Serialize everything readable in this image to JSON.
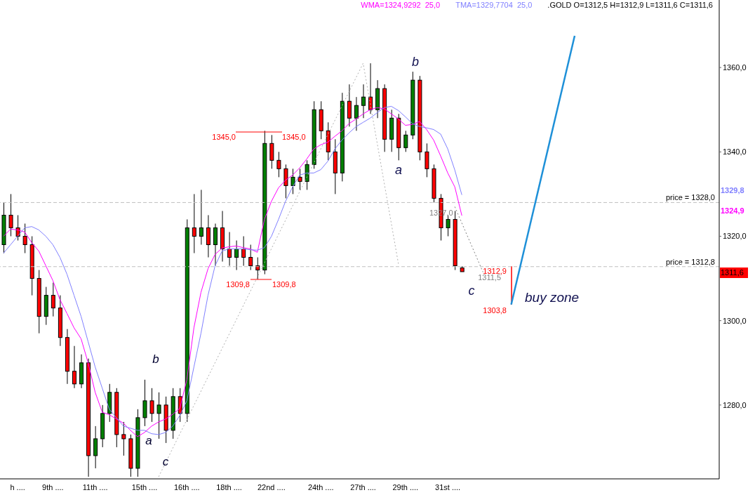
{
  "chart_data": {
    "type": "candlestick",
    "title": ".GOLD O=1312,5 H=1312,9 L=1311,6 C=1311,6",
    "categories": [
      null,
      null,
      "h ....",
      null,
      null,
      null,
      null,
      "9th ....",
      null,
      null,
      null,
      null,
      null,
      "11th ....",
      null,
      null,
      null,
      null,
      null,
      null,
      "15th ....",
      null,
      null,
      null,
      null,
      null,
      "16th ....",
      null,
      null,
      null,
      null,
      null,
      "18th ....",
      null,
      null,
      null,
      null,
      null,
      "22nd ....",
      null,
      null,
      null,
      null,
      null,
      null,
      "24th ....",
      null,
      null,
      null,
      null,
      null,
      "27th ....",
      null,
      null,
      null,
      null,
      null,
      "29th ....",
      null,
      null,
      null,
      null,
      null,
      "31st ....",
      null,
      null,
      null,
      null,
      null,
      null,
      null,
      null,
      null,
      null,
      null,
      null,
      null,
      null,
      null,
      null,
      null,
      null,
      null,
      null,
      null,
      null,
      null,
      null,
      null,
      null,
      null,
      null,
      null,
      null,
      null,
      null,
      null,
      null,
      null,
      null,
      null,
      null
    ],
    "ohlc": [
      [
        1318,
        1328,
        1316,
        1325
      ],
      [
        1325,
        1330,
        1320,
        1322
      ],
      [
        1322,
        1325,
        1319,
        1320
      ],
      [
        1320,
        1323,
        1316,
        1318
      ],
      [
        1318,
        1320,
        1306,
        1310
      ],
      [
        1310,
        1312,
        1297,
        1301
      ],
      [
        1301,
        1308,
        1299,
        1306
      ],
      [
        1306,
        1309,
        1301,
        1303
      ],
      [
        1303,
        1306,
        1294,
        1296
      ],
      [
        1296,
        1298,
        1285,
        1288
      ],
      [
        1288,
        1294,
        1284,
        1285
      ],
      [
        1285,
        1292,
        1284,
        1290
      ],
      [
        1290,
        1291,
        1263,
        1268
      ],
      [
        1268,
        1275,
        1265,
        1272
      ],
      [
        1272,
        1280,
        1270,
        1278
      ],
      [
        1278,
        1285,
        1276,
        1283
      ],
      [
        1283,
        1284,
        1270,
        1273
      ],
      [
        1273,
        1276,
        1268,
        1272
      ],
      [
        1272,
        1273,
        1263,
        1265
      ],
      [
        1265,
        1279,
        1263,
        1277
      ],
      [
        1277,
        1286,
        1275,
        1281
      ],
      [
        1281,
        1284,
        1276,
        1278
      ],
      [
        1278,
        1283,
        1272,
        1280
      ],
      [
        1280,
        1282,
        1271,
        1274
      ],
      [
        1274,
        1284,
        1272,
        1282
      ],
      [
        1282,
        1284,
        1276,
        1278
      ],
      [
        1278,
        1324,
        1276,
        1322
      ],
      [
        1322,
        1330,
        1316,
        1320
      ],
      [
        1320,
        1331,
        1318,
        1322
      ],
      [
        1322,
        1325,
        1315,
        1318
      ],
      [
        1318,
        1323,
        1313,
        1322
      ],
      [
        1322,
        1326,
        1314,
        1317
      ],
      [
        1317,
        1321,
        1313,
        1315
      ],
      [
        1315,
        1319,
        1312,
        1317
      ],
      [
        1317,
        1320,
        1313,
        1315
      ],
      [
        1315,
        1318,
        1312,
        1313
      ],
      [
        1313,
        1315,
        1309.8,
        1312
      ],
      [
        1312,
        1345,
        1311,
        1342
      ],
      [
        1342,
        1344,
        1336,
        1338
      ],
      [
        1338,
        1340,
        1334,
        1336
      ],
      [
        1336,
        1337,
        1329,
        1332
      ],
      [
        1332,
        1336,
        1330,
        1334
      ],
      [
        1334,
        1336,
        1331,
        1333
      ],
      [
        1333,
        1338,
        1331,
        1337
      ],
      [
        1337,
        1352,
        1336,
        1350
      ],
      [
        1350,
        1352,
        1343,
        1345
      ],
      [
        1345,
        1347,
        1338,
        1340
      ],
      [
        1340,
        1343,
        1330,
        1335
      ],
      [
        1335,
        1354,
        1333,
        1352
      ],
      [
        1352,
        1356,
        1346,
        1348
      ],
      [
        1348,
        1353,
        1345,
        1351
      ],
      [
        1351,
        1356,
        1348,
        1353
      ],
      [
        1353,
        1361,
        1349,
        1350
      ],
      [
        1350,
        1357,
        1348,
        1355
      ],
      [
        1355,
        1356,
        1340,
        1343
      ],
      [
        1343,
        1350,
        1340,
        1348
      ],
      [
        1348,
        1349,
        1338,
        1341
      ],
      [
        1341,
        1345,
        1340,
        1344
      ],
      [
        1344,
        1359,
        1343,
        1357
      ],
      [
        1357,
        1358,
        1338,
        1340
      ],
      [
        1340,
        1342,
        1334,
        1336
      ],
      [
        1336,
        1337,
        1328,
        1329
      ],
      [
        1329,
        1330,
        1319,
        1322
      ],
      [
        1322,
        1325,
        1320,
        1324
      ],
      [
        1324,
        1326,
        1312,
        1313
      ],
      [
        1312.5,
        1312.9,
        1311.6,
        1311.6
      ],
      null,
      null,
      null,
      null,
      null,
      null,
      null,
      null,
      null,
      null,
      null,
      null,
      null,
      null,
      null,
      null,
      null,
      null,
      null,
      null,
      null,
      null,
      null,
      null,
      null,
      null,
      null,
      null,
      null,
      null,
      null,
      null,
      null,
      null,
      null,
      null
    ],
    "colors": [
      "#008000",
      "#ff0000",
      "#ff0000",
      "#ff0000",
      "#ff0000",
      "#ff0000",
      "#008000",
      "#ff0000",
      "#ff0000",
      "#ff0000",
      "#ff0000",
      "#008000",
      "#ff0000",
      "#008000",
      "#008000",
      "#008000",
      "#ff0000",
      "#ff0000",
      "#ff0000",
      "#008000",
      "#008000",
      "#ff0000",
      "#008000",
      "#ff0000",
      "#008000",
      "#ff0000",
      "#008000",
      "#ff0000",
      "#008000",
      "#ff0000",
      "#008000",
      "#ff0000",
      "#ff0000",
      "#008000",
      "#ff0000",
      "#ff0000",
      "#ff0000",
      "#008000",
      "#ff0000",
      "#ff0000",
      "#ff0000",
      "#008000",
      "#ff0000",
      "#008000",
      "#008000",
      "#ff0000",
      "#ff0000",
      "#ff0000",
      "#008000",
      "#ff0000",
      "#008000",
      "#008000",
      "#ff0000",
      "#008000",
      "#ff0000",
      "#008000",
      "#ff0000",
      "#008000",
      "#008000",
      "#ff0000",
      "#ff0000",
      "#ff0000",
      "#ff0000",
      "#008000",
      "#ff0000",
      "#ff0000",
      null,
      null,
      null,
      null,
      null,
      null,
      null,
      null,
      null,
      null,
      null,
      null,
      null,
      null,
      null,
      null,
      null,
      null,
      null,
      null,
      null,
      null,
      null,
      null,
      null,
      null,
      null,
      null,
      null,
      null,
      null,
      null,
      null,
      null,
      null,
      null
    ],
    "series": [
      {
        "name": "WMA=1324,9292  25,0",
        "type": "line",
        "color": "#ff00ff",
        "values": [
          1320,
          1321.7,
          1321.5,
          1321,
          1318.5,
          1316.5,
          1313,
          1309.5,
          1305,
          1301.7,
          1298.3,
          1295.7,
          1290,
          1283,
          1278.3,
          1277.7,
          1276.7,
          1275.7,
          1274,
          1272.5,
          1273.5,
          1275,
          1276,
          1276.7,
          1277.8,
          1279.2,
          1286,
          1298.3,
          1306.7,
          1312.3,
          1315.7,
          1317.2,
          1317.5,
          1317.7,
          1317.3,
          1317,
          1316.2,
          1324,
          1328.3,
          1331.5,
          1333.3,
          1334.5,
          1336.2,
          1338.3,
          1340.7,
          1341.7,
          1342.3,
          1343.7,
          1345,
          1346.7,
          1347.8,
          1349,
          1350,
          1350.5,
          1350.2,
          1349,
          1347.8,
          1346.3,
          1346.5,
          1347.2,
          1345.3,
          1342.8,
          1339,
          1335,
          1331.7,
          1324.9,
          null,
          null,
          null,
          null,
          null,
          null,
          null,
          null,
          null,
          null,
          null,
          null,
          null,
          null,
          null,
          null,
          null,
          null,
          null,
          null,
          null,
          null,
          null,
          null,
          null,
          null,
          null,
          null,
          null,
          null,
          null,
          null,
          null,
          null,
          null,
          null
        ]
      },
      {
        "name": "TMA=1329,7704  25,0",
        "type": "line",
        "color": "#8080ff",
        "values": [
          1316,
          1318,
          1320,
          1322,
          1322.3,
          1321.5,
          1320,
          1318,
          1315,
          1311,
          1306,
          1301,
          1295,
          1289,
          1284,
          1279,
          1277,
          1275,
          1274.5,
          1274,
          1274,
          1273.2,
          1273,
          1273.5,
          1275,
          1277.5,
          1281,
          1289,
          1297,
          1306,
          1313,
          1316.5,
          1317,
          1317,
          1317,
          1316.8,
          1316.7,
          1317.3,
          1320,
          1324,
          1328.3,
          1331.7,
          1334.5,
          1335,
          1335,
          1335.8,
          1337.8,
          1340.7,
          1342.8,
          1344.5,
          1346,
          1347,
          1348,
          1349.3,
          1350.5,
          1350.8,
          1349.8,
          1348.3,
          1346.7,
          1346,
          1345.7,
          1345.3,
          1344.2,
          1340.7,
          1335.7,
          1329.8,
          null,
          null,
          null,
          null,
          null,
          null,
          null,
          null,
          null,
          null,
          null,
          null,
          null,
          null,
          null,
          null,
          null,
          null,
          null,
          null,
          null,
          null,
          null,
          null,
          null,
          null,
          null,
          null,
          null,
          null,
          null,
          null,
          null,
          null,
          null,
          null
        ]
      },
      {
        "type": "line",
        "color": "#b0b0b0",
        "line_style": "dotted",
        "values": [
          null,
          null,
          null,
          null,
          null,
          null,
          null,
          null,
          null,
          null,
          null,
          null,
          null,
          null,
          null,
          null,
          null,
          null,
          null,
          null,
          null,
          null,
          1263,
          null,
          null,
          null,
          null,
          null,
          null,
          null,
          null,
          null,
          null,
          null,
          null,
          null,
          null,
          null,
          null,
          null,
          null,
          null,
          null,
          null,
          null,
          null,
          null,
          null,
          null,
          null,
          null,
          1361,
          null,
          null,
          null,
          null,
          1313.5,
          null,
          null,
          null,
          null,
          null,
          null,
          null,
          null,
          null,
          null,
          null,
          null,
          null,
          null,
          null,
          null,
          null,
          null,
          null,
          null,
          null,
          null,
          null,
          null,
          null,
          null,
          null,
          null,
          null,
          null,
          null,
          null,
          null,
          null,
          null,
          null,
          null,
          null,
          null,
          null,
          null,
          null,
          null,
          null,
          null
        ]
      },
      {
        "type": "line",
        "color": "#808080",
        "line_style": "dotted",
        "values": [
          null,
          null,
          null,
          null,
          null,
          null,
          null,
          null,
          null,
          null,
          null,
          null,
          null,
          null,
          null,
          null,
          null,
          null,
          null,
          null,
          null,
          null,
          null,
          null,
          null,
          null,
          null,
          null,
          null,
          null,
          null,
          null,
          null,
          null,
          null,
          null,
          null,
          null,
          null,
          null,
          null,
          null,
          null,
          null,
          null,
          null,
          null,
          null,
          null,
          null,
          null,
          null,
          null,
          null,
          null,
          null,
          null,
          null,
          null,
          null,
          null,
          null,
          null,
          null,
          1327,
          null,
          null,
          null,
          1311.5,
          null,
          null,
          null,
          null,
          null,
          null,
          null,
          null,
          null,
          null,
          null,
          null,
          null,
          null,
          null,
          null,
          null,
          null,
          null,
          null,
          null,
          null,
          null,
          null,
          null,
          null,
          null,
          null,
          null,
          null,
          null,
          null,
          null
        ]
      },
      {
        "type": "line",
        "color": "#1e90d8",
        "values": [
          null,
          null,
          null,
          null,
          null,
          null,
          null,
          null,
          null,
          null,
          null,
          null,
          null,
          null,
          null,
          null,
          null,
          null,
          null,
          null,
          null,
          null,
          null,
          null,
          null,
          null,
          null,
          null,
          null,
          null,
          null,
          null,
          null,
          null,
          null,
          null,
          null,
          null,
          null,
          null,
          null,
          null,
          null,
          null,
          null,
          null,
          null,
          null,
          null,
          null,
          null,
          null,
          null,
          null,
          null,
          null,
          null,
          null,
          null,
          null,
          null,
          null,
          null,
          null,
          null,
          null,
          null,
          null,
          null,
          null,
          null,
          null,
          1303.8,
          null,
          null,
          null,
          null,
          null,
          null,
          null,
          null,
          1367.5,
          null,
          null,
          null,
          null,
          null,
          null,
          null,
          null,
          null,
          null,
          null,
          null,
          null,
          null,
          null,
          null,
          null,
          null,
          null,
          null
        ]
      },
      {
        "type": "bar",
        "color": "#ff0000",
        "base": [
          null,
          null,
          null,
          null,
          null,
          null,
          null,
          null,
          null,
          null,
          null,
          null,
          null,
          null,
          null,
          null,
          null,
          null,
          null,
          null,
          null,
          null,
          null,
          null,
          null,
          null,
          null,
          null,
          null,
          null,
          null,
          null,
          null,
          null,
          null,
          null,
          null,
          null,
          null,
          null,
          null,
          null,
          null,
          null,
          null,
          null,
          null,
          null,
          null,
          null,
          null,
          null,
          null,
          null,
          null,
          null,
          null,
          null,
          null,
          null,
          null,
          null,
          null,
          null,
          null,
          null,
          null,
          null,
          null,
          null,
          null,
          null,
          1303.8,
          null,
          null,
          null,
          null,
          null,
          null,
          null,
          null,
          null,
          null,
          null,
          null,
          null,
          null,
          null,
          null,
          null,
          null,
          null,
          null,
          null,
          null,
          null,
          null,
          null,
          null,
          null,
          null,
          null
        ],
        "values": [
          null,
          null,
          null,
          null,
          null,
          null,
          null,
          null,
          null,
          null,
          null,
          null,
          null,
          null,
          null,
          null,
          null,
          null,
          null,
          null,
          null,
          null,
          null,
          null,
          null,
          null,
          null,
          null,
          null,
          null,
          null,
          null,
          null,
          null,
          null,
          null,
          null,
          null,
          null,
          null,
          null,
          null,
          null,
          null,
          null,
          null,
          null,
          null,
          null,
          null,
          null,
          null,
          null,
          null,
          null,
          null,
          null,
          null,
          null,
          null,
          null,
          null,
          null,
          null,
          null,
          null,
          null,
          null,
          null,
          null,
          null,
          null,
          9.1,
          null,
          null,
          null,
          null,
          null,
          null,
          null,
          null,
          null,
          null,
          null,
          null,
          null,
          null,
          null,
          null,
          null,
          null,
          null,
          null,
          null,
          null,
          null,
          null,
          null,
          null,
          null,
          null,
          null
        ]
      }
    ],
    "ylim": [
      1262.5,
      1376
    ],
    "yticks": [
      {
        "value": 1280,
        "label": "1280,0"
      },
      {
        "value": 1300,
        "label": "1300,0"
      },
      {
        "value": 1320,
        "label": "1320,0"
      },
      {
        "value": 1340,
        "label": "1340,0"
      },
      {
        "value": 1360,
        "label": "1360,0"
      }
    ],
    "ref_lines": [
      {
        "axis": "y",
        "value": 1328,
        "label": "price = 1328,0",
        "color": "#c0c0c0",
        "line_style": "dashed"
      },
      {
        "axis": "y",
        "value": 1312.8,
        "label": "price = 1312,8",
        "color": "#c0c0c0",
        "line_style": "dashed"
      }
    ],
    "annotations": [
      "1345,0",
      "1345,0",
      "1309,8",
      "1309,8",
      "1327,0",
      {
        "text": "1312,9",
        "y": 1312.9
      },
      "1311,5",
      "1303,8",
      "buy zone",
      "a",
      "b",
      "c",
      "a",
      "b",
      "c",
      "1329,8",
      "1324,9",
      "1311,6"
    ],
    "legend": "top right"
  }
}
